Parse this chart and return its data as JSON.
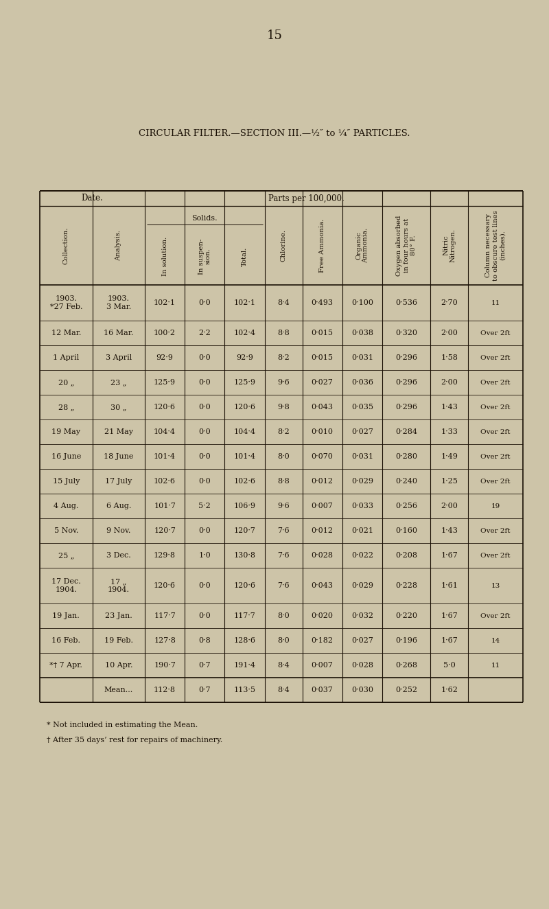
{
  "page_number": "15",
  "title": "CIRCULAR FILTER.—SECTION III.—½″ to ¼″ PARTICLES.",
  "bg_color": "#cdc4a8",
  "text_color": "#1a1005",
  "rows": [
    [
      "1903.\n*27 Feb.",
      "1903.\n3 Mar.",
      "102·1",
      "0·0",
      "102·1",
      "8·4",
      "0·493",
      "0·100",
      "0·536",
      "2·70",
      "11"
    ],
    [
      "12 Mar.",
      "16 Mar.",
      "100·2",
      "2·2",
      "102·4",
      "8·8",
      "0·015",
      "0·038",
      "0·320",
      "2·00",
      "Over 2ft"
    ],
    [
      "1 April",
      "3 April",
      "92·9",
      "0·0",
      "92·9",
      "8·2",
      "0·015",
      "0·031",
      "0·296",
      "1·58",
      "Over 2ft"
    ],
    [
      "20 „",
      "23 „",
      "125·9",
      "0·0",
      "125·9",
      "9·6",
      "0·027",
      "0·036",
      "0·296",
      "2·00",
      "Over 2ft"
    ],
    [
      "28 „",
      "30 „",
      "120·6",
      "0·0",
      "120·6",
      "9·8",
      "0·043",
      "0·035",
      "0·296",
      "1·43",
      "Over 2ft"
    ],
    [
      "19 May",
      "21 May",
      "104·4",
      "0·0",
      "104·4",
      "8·2",
      "0·010",
      "0·027",
      "0·284",
      "1·33",
      "Over 2ft"
    ],
    [
      "16 June",
      "18 June",
      "101·4",
      "0·0",
      "101·4",
      "8·0",
      "0·070",
      "0·031",
      "0·280",
      "1·49",
      "Over 2ft"
    ],
    [
      "15 July",
      "17 July",
      "102·6",
      "0·0",
      "102·6",
      "8·8",
      "0·012",
      "0·029",
      "0·240",
      "1·25",
      "Over 2ft"
    ],
    [
      "4 Aug.",
      "6 Aug.",
      "101·7",
      "5·2",
      "106·9",
      "9·6",
      "0·007",
      "0·033",
      "0·256",
      "2·00",
      "19"
    ],
    [
      "5 Nov.",
      "9 Nov.",
      "120·7",
      "0·0",
      "120·7",
      "7·6",
      "0·012",
      "0·021",
      "0·160",
      "1·43",
      "Over 2ft"
    ],
    [
      "25 „",
      "3 Dec.",
      "129·8",
      "1·0",
      "130·8",
      "7·6",
      "0·028",
      "0·022",
      "0·208",
      "1·67",
      "Over 2ft"
    ],
    [
      "17 Dec.\n1904.",
      "17 „\n1904.",
      "120·6",
      "0·0",
      "120·6",
      "7·6",
      "0·043",
      "0·029",
      "0·228",
      "1·61",
      "13"
    ],
    [
      "19 Jan.",
      "23 Jan.",
      "117·7",
      "0·0",
      "117·7",
      "8·0",
      "0·020",
      "0·032",
      "0·220",
      "1·67",
      "Over 2ft"
    ],
    [
      "16 Feb.",
      "19 Feb.",
      "127·8",
      "0·8",
      "128·6",
      "8·0",
      "0·182",
      "0·027",
      "0·196",
      "1·67",
      "14"
    ],
    [
      "*† 7 Apr.",
      "10 Apr.",
      "190·7",
      "0·7",
      "191·4",
      "8·4",
      "0·007",
      "0·028",
      "0·268",
      "5·0",
      "11"
    ],
    [
      "",
      "Mean...",
      "112·8",
      "0·7",
      "113·5",
      "8·4",
      "0·037",
      "0·030",
      "0·252",
      "1·62",
      ""
    ]
  ],
  "col_headers": [
    "Collection.",
    "Analysis.",
    "In solution.",
    "In suspen-\nsion.",
    "Total.",
    "Chlorine.",
    "Free Ammonia.",
    "Organic\nAmmonia.",
    "Oxygen absorbed\nin four hours at\n80° F.",
    "Nitric\nNitrogen.",
    "Column necessary\nto obscure test lines\n(inches)."
  ],
  "footnote1": "* Not included in estimating the Mean.",
  "footnote2": "† After 35 days’ rest for repairs of machinery.",
  "col_props": [
    0.1,
    0.1,
    0.076,
    0.076,
    0.076,
    0.072,
    0.076,
    0.076,
    0.092,
    0.072,
    0.104
  ]
}
